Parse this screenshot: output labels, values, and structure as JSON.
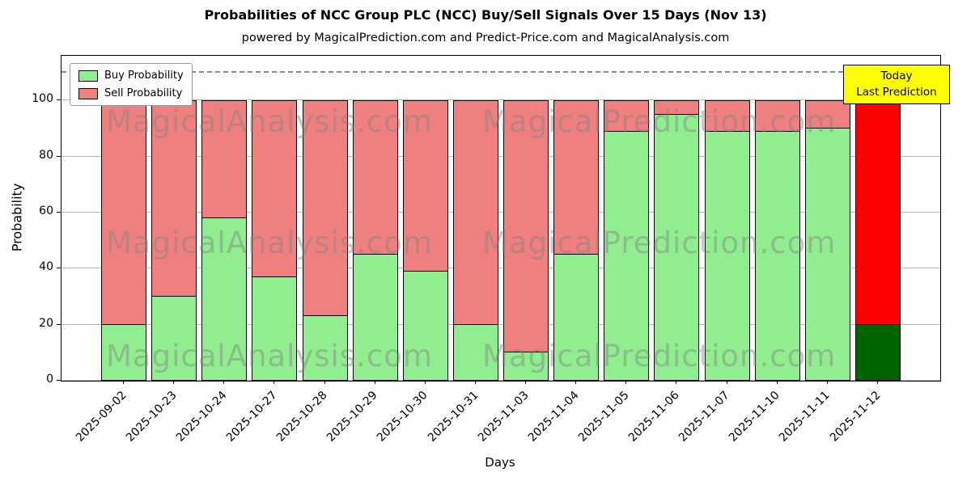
{
  "chart_data": {
    "type": "bar",
    "stacked": true,
    "title": "Probabilities of NCC Group PLC (NCC) Buy/Sell Signals Over 15 Days (Nov 13)",
    "subtitle": "powered by MagicalPrediction.com and Predict-Price.com and MagicalAnalysis.com",
    "xlabel": "Days",
    "ylabel": "Probability",
    "categories": [
      "2025-09-02",
      "2025-10-23",
      "2025-10-24",
      "2025-10-27",
      "2025-10-28",
      "2025-10-29",
      "2025-10-30",
      "2025-10-31",
      "2025-11-03",
      "2025-11-04",
      "2025-11-05",
      "2025-11-06",
      "2025-11-07",
      "2025-11-10",
      "2025-11-11",
      "2025-11-12"
    ],
    "series": [
      {
        "name": "Buy Probability",
        "color": "#90ee90",
        "last_color": "#006400",
        "values": [
          20,
          30,
          58,
          37,
          23,
          45,
          39,
          20,
          10,
          45,
          89,
          95,
          89,
          89,
          90,
          20
        ]
      },
      {
        "name": "Sell Probability",
        "color": "#f08080",
        "last_color": "#ff0000",
        "values": [
          80,
          70,
          42,
          63,
          77,
          55,
          61,
          80,
          90,
          55,
          11,
          5,
          11,
          11,
          10,
          80
        ]
      }
    ],
    "ylim": [
      0,
      116
    ],
    "yticks": [
      0,
      20,
      40,
      60,
      80,
      100
    ],
    "dashed_line_y": 110,
    "grid": true,
    "legend_position": "top-left",
    "annotation": {
      "line1": "Today",
      "line2": "Last Prediction",
      "bg_color": "#ffff00"
    },
    "watermarks": [
      "MagicalAnalysis.com",
      "MagicalPrediction.com"
    ]
  }
}
